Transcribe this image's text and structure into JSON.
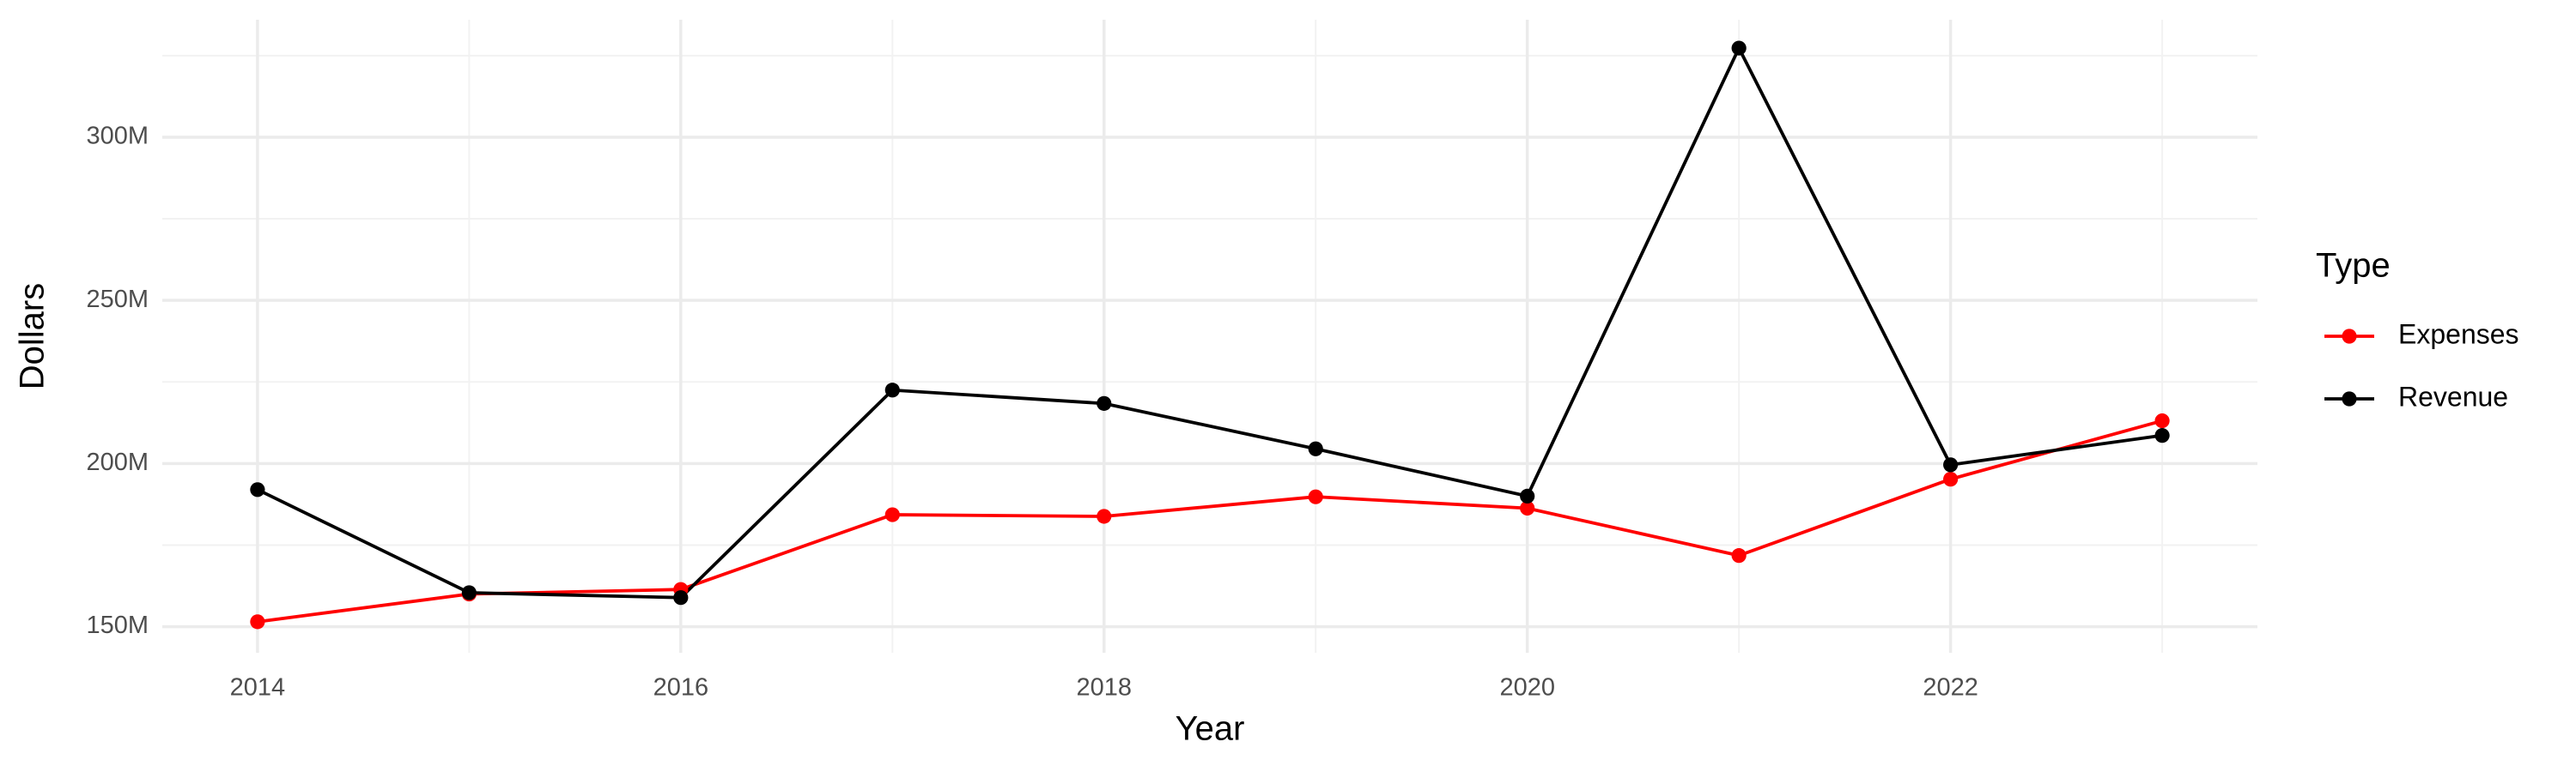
{
  "chart_data": {
    "type": "line",
    "x_label": "Year",
    "y_label": "Dollars",
    "legend_title": "Type",
    "x": [
      2014,
      2015,
      2016,
      2017,
      2018,
      2019,
      2020,
      2021,
      2022,
      2023
    ],
    "series": [
      {
        "name": "Expenses",
        "color": "#ff0000",
        "values": [
          151500000,
          160000000,
          161400000,
          184300000,
          183800000,
          189800000,
          186300000,
          171800000,
          195200000,
          213100000
        ]
      },
      {
        "name": "Revenue",
        "color": "#000000",
        "values": [
          192000000,
          160400000,
          158900000,
          222500000,
          218400000,
          204500000,
          190000000,
          327300000,
          199600000,
          208600000
        ]
      }
    ],
    "xlim": [
      2013.55,
      2023.45
    ],
    "xticks": [
      2014,
      2016,
      2018,
      2020,
      2022
    ],
    "minor_xticks": [
      2015,
      2017,
      2019,
      2021,
      2023
    ],
    "ylim": [
      142000000,
      336000000
    ],
    "yticks": [
      {
        "value": 150000000,
        "label": "150M"
      },
      {
        "value": 200000000,
        "label": "200M"
      },
      {
        "value": 250000000,
        "label": "250M"
      },
      {
        "value": 300000000,
        "label": "300M"
      }
    ],
    "minor_yticks": [
      175000000,
      225000000,
      275000000,
      325000000
    ],
    "grid": true
  }
}
